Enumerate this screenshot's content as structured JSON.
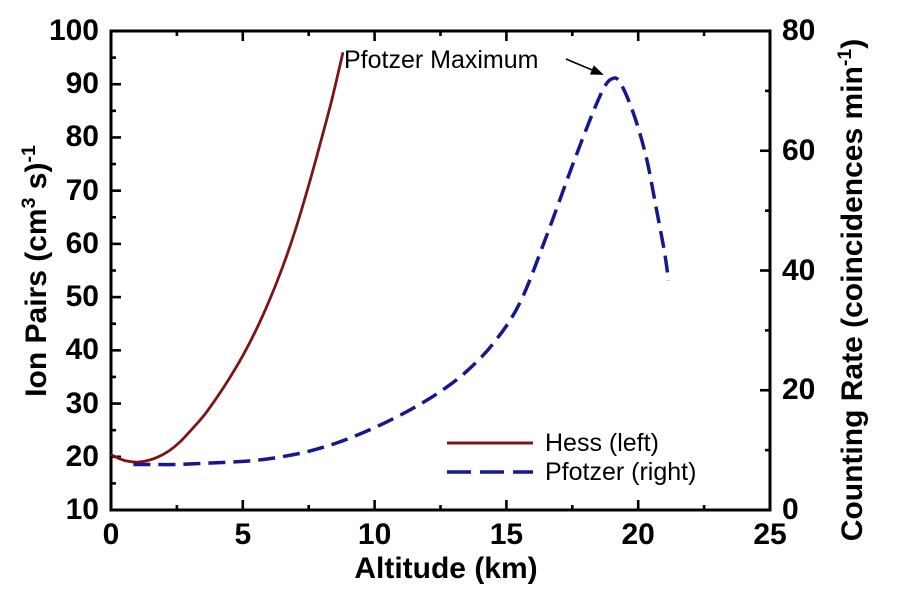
{
  "chart_data": {
    "type": "line",
    "title": "",
    "xlabel": "Altitude (km)",
    "ylabel_left": "Ion Pairs (cm3 s)-1",
    "ylabel_left_parts": [
      {
        "t": "Ion Pairs (cm"
      },
      {
        "t": "3",
        "sup": true
      },
      {
        "t": " s)"
      },
      {
        "t": "-1",
        "sup": true
      }
    ],
    "ylabel_right": "Counting Rate (coincidences min-1)",
    "ylabel_right_parts": [
      {
        "t": "Counting Rate (coincidences min"
      },
      {
        "t": "-1",
        "sup": true
      },
      {
        "t": ")"
      }
    ],
    "x_axis": {
      "min": 0,
      "max": 25,
      "major_ticks": [
        0,
        5,
        10,
        15,
        20,
        25
      ],
      "minor_step": 2.5
    },
    "y_left_axis": {
      "min": 10,
      "max": 100,
      "major_ticks": [
        10,
        20,
        30,
        40,
        50,
        60,
        70,
        80,
        90,
        100
      ],
      "minor_step": 5
    },
    "y_right_axis": {
      "min": 0,
      "max": 80,
      "major_ticks": [
        0,
        20,
        40,
        60,
        80
      ],
      "minor_step": 10
    },
    "grid": false,
    "legend_position": "inside lower right",
    "annotation": {
      "text": "Pfotzer Maximum",
      "points_to_x": 19,
      "points_to_value": 72,
      "value_axis": "right"
    },
    "colors": {
      "hess": "#7d1416",
      "pfotzer": "#17178f",
      "axis": "#000000"
    },
    "series": [
      {
        "name": "Hess (left)",
        "axis": "left",
        "style": "solid",
        "color": "#7d1416",
        "points": [
          [
            0,
            20.4
          ],
          [
            0.3,
            19.7
          ],
          [
            0.6,
            19.2
          ],
          [
            1,
            19.0
          ],
          [
            1.4,
            19.3
          ],
          [
            1.8,
            20.0
          ],
          [
            2.2,
            21.1
          ],
          [
            2.6,
            22.7
          ],
          [
            3,
            24.8
          ],
          [
            3.5,
            27.6
          ],
          [
            4,
            31
          ],
          [
            4.5,
            34.8
          ],
          [
            5,
            39
          ],
          [
            5.5,
            43.8
          ],
          [
            6,
            49.3
          ],
          [
            6.5,
            55.5
          ],
          [
            7,
            62.7
          ],
          [
            7.5,
            71
          ],
          [
            8,
            80
          ],
          [
            8.4,
            87.5
          ],
          [
            8.8,
            96
          ]
        ]
      },
      {
        "name": "Pfotzer (right)",
        "axis": "right",
        "style": "dashed",
        "color": "#17178f",
        "points": [
          [
            0.85,
            7.6
          ],
          [
            1.5,
            7.6
          ],
          [
            2.5,
            7.6
          ],
          [
            3.5,
            7.8
          ],
          [
            4.5,
            8.0
          ],
          [
            5.5,
            8.3
          ],
          [
            6.5,
            8.9
          ],
          [
            7.5,
            9.8
          ],
          [
            8.5,
            11.1
          ],
          [
            9.5,
            12.8
          ],
          [
            10.5,
            14.8
          ],
          [
            11.5,
            17.1
          ],
          [
            12.5,
            19.8
          ],
          [
            13.5,
            23.2
          ],
          [
            14.5,
            27.8
          ],
          [
            15.5,
            34.5
          ],
          [
            16.5,
            45.5
          ],
          [
            17.5,
            57.5
          ],
          [
            18.2,
            65.5
          ],
          [
            18.7,
            70.5
          ],
          [
            19,
            72
          ],
          [
            19.3,
            71.5
          ],
          [
            19.8,
            66.5
          ],
          [
            20.3,
            59
          ],
          [
            20.7,
            50
          ],
          [
            21,
            43
          ],
          [
            21.15,
            38.3
          ]
        ]
      }
    ]
  }
}
